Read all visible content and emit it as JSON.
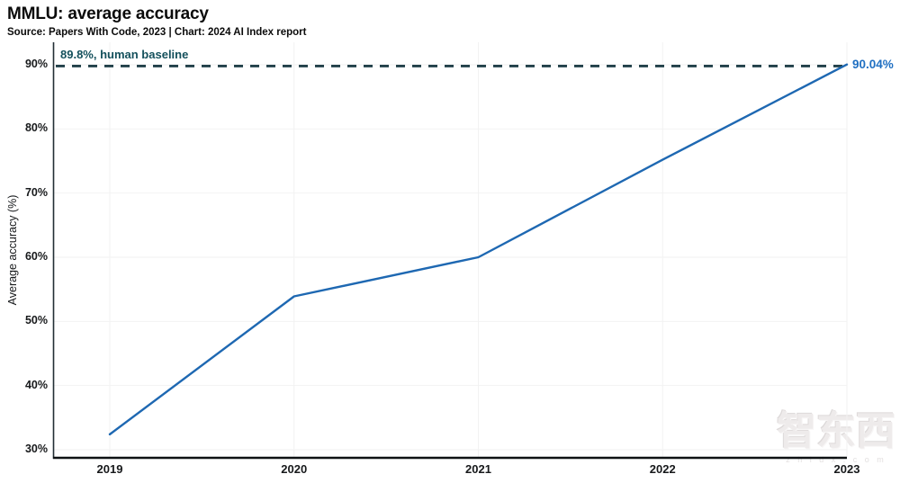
{
  "header": {
    "title": "MMLU: average accuracy",
    "source": "Source: Papers With Code, 2023 | Chart: 2024 AI Index report"
  },
  "chart_data": {
    "type": "line",
    "title": "MMLU: average accuracy",
    "x": [
      2019,
      2020,
      2021,
      2022,
      2023
    ],
    "x_labels": [
      "2019",
      "2020",
      "2021",
      "2022",
      "2023"
    ],
    "series": [
      {
        "name": "Average accuracy",
        "values": [
          32.4,
          53.9,
          60.0,
          75.2,
          90.04
        ]
      }
    ],
    "ylabel": "Average accuracy (%)",
    "xlabel": "",
    "ylim": [
      30,
      90
    ],
    "ytick_values": [
      30,
      40,
      50,
      60,
      70,
      80,
      90
    ],
    "ytick_labels": [
      "30%",
      "40%",
      "50%",
      "60%",
      "70%",
      "80%",
      "90%"
    ],
    "grid": true,
    "legend": "none",
    "baseline": {
      "value": 89.8,
      "label": "89.8%, human baseline"
    },
    "end_label": "90.04%",
    "colors": {
      "line": "#1e68b2",
      "baseline_dash": "#22414a",
      "annotation_text": "#14505c",
      "end_label_text": "#1f6fc2",
      "grid": "#f2f2f2",
      "y_axis": "#222e35",
      "x_axis": "#0e1214",
      "text": "#17191b"
    }
  },
  "watermark": {
    "logo": "智东西",
    "site": "z h i d x . c o m"
  }
}
